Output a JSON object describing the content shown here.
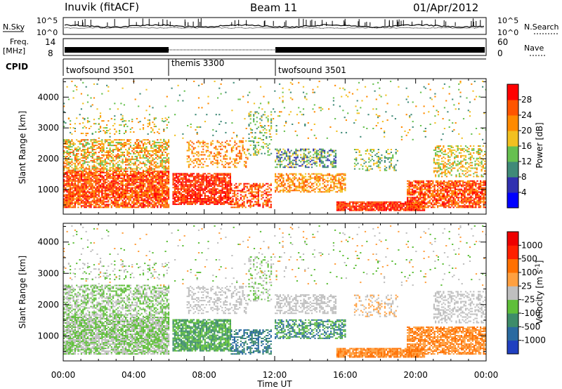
{
  "header": {
    "station": "Inuvik (fitACF)",
    "beam": "Beam 11",
    "date": "01/Apr/2012"
  },
  "chart_data": [
    {
      "type": "line",
      "name": "noise-panel",
      "left_label": "N.Sky",
      "right_label": "N.Search",
      "left_ticks": [
        "10^5",
        "10^0"
      ],
      "right_ticks": [
        "10^5",
        "10^0"
      ]
    },
    {
      "type": "line",
      "name": "frequency-panel",
      "left_label": "Freq.",
      "left_unit": "[MHz]",
      "left_ticks": [
        "14",
        "8"
      ],
      "right_label": "Nave",
      "right_ticks": [
        "60",
        "0"
      ]
    },
    {
      "type": "table",
      "name": "cpid-bar",
      "label": "CPID",
      "segments": [
        {
          "name": "twofsound 3501",
          "start_hour": 0,
          "end_hour": 6
        },
        {
          "name": "themis 3300",
          "start_hour": 6,
          "end_hour": 12
        },
        {
          "name": "twofsound 3501",
          "start_hour": 12,
          "end_hour": 24
        }
      ]
    },
    {
      "type": "heatmap",
      "name": "power-panel",
      "ylabel": "Slant Range [km]",
      "yticks": [
        1000,
        2000,
        3000,
        4000
      ],
      "ylim": [
        200,
        4600
      ],
      "xlim": [
        0,
        24
      ],
      "colorbar": {
        "label": "Power [dB]",
        "ticks": [
          4,
          8,
          12,
          16,
          20,
          24,
          28
        ],
        "colors": [
          "#0000ff",
          "#3030b0",
          "#408a78",
          "#66c050",
          "#f2c020",
          "#ff8a00",
          "#ff5500",
          "#ff0000"
        ]
      }
    },
    {
      "type": "heatmap",
      "name": "velocity-panel",
      "ylabel": "Slant Range [km]",
      "yticks": [
        1000,
        2000,
        3000,
        4000
      ],
      "ylim": [
        200,
        4600
      ],
      "xlim": [
        0,
        24
      ],
      "xlabel": "Time UT",
      "xticks": [
        "00:00",
        "04:00",
        "08:00",
        "12:00",
        "16:00",
        "20:00",
        "00:00"
      ],
      "colorbar": {
        "label": "Velocity [m s",
        "label_sup": "-1",
        "label_end": "]",
        "ticks": [
          "1000",
          "500",
          "100",
          "25",
          "-25",
          "-100",
          "-500",
          "-1000"
        ],
        "colors": [
          "#2040c0",
          "#2a6aa0",
          "#3e8c6a",
          "#5fbf3a",
          "#bfbfbf",
          "#ffa040",
          "#ff7000",
          "#ff2000",
          "#ee0000"
        ]
      }
    }
  ]
}
